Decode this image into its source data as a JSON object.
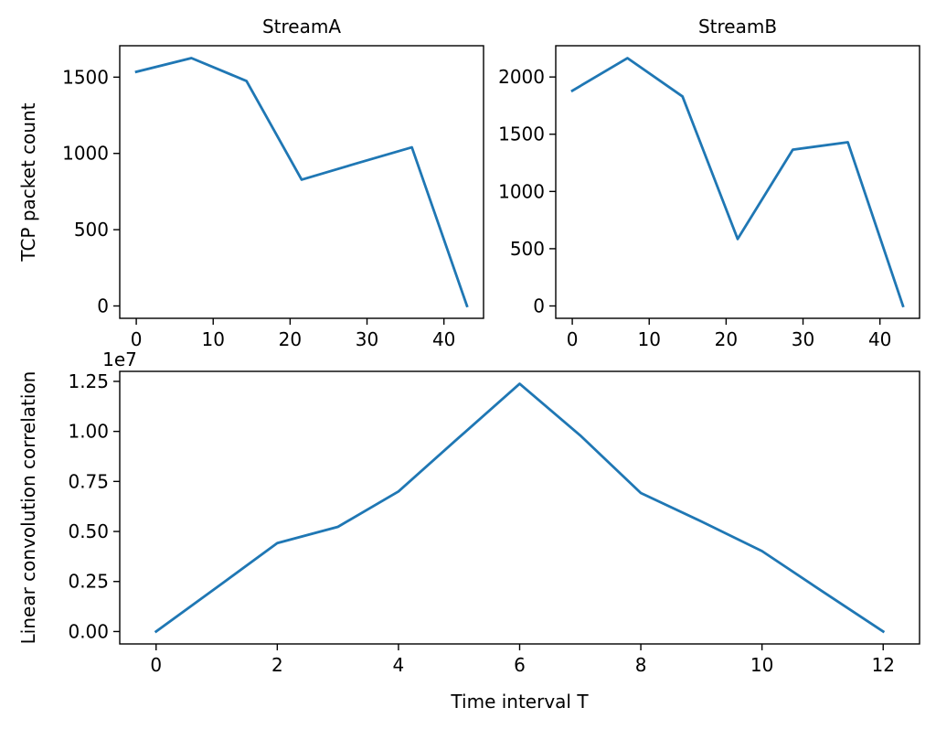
{
  "chart_data": [
    {
      "type": "line",
      "title": "StreamA",
      "xlabel": "",
      "ylabel": "TCP packet count",
      "color": "#1f77b4",
      "x": [
        0,
        7.17,
        14.33,
        21.5,
        28.67,
        35.83,
        43
      ],
      "y": [
        1535,
        1625,
        1475,
        828,
        935,
        1040,
        0
      ],
      "xlim": [
        -2.15,
        45.15
      ],
      "ylim": [
        -81,
        1706
      ],
      "xticks": [
        0,
        10,
        20,
        30,
        40
      ],
      "yticks": [
        0,
        500,
        1000,
        1500
      ],
      "ytick_labels": [
        "0",
        "500",
        "1000",
        "1500"
      ],
      "offset_text": ""
    },
    {
      "type": "line",
      "title": "StreamB",
      "xlabel": "",
      "ylabel": "",
      "color": "#1f77b4",
      "x": [
        0,
        7.17,
        14.33,
        21.5,
        28.67,
        35.83,
        43
      ],
      "y": [
        1880,
        2165,
        1830,
        585,
        1365,
        1430,
        0
      ],
      "xlim": [
        -2.15,
        45.15
      ],
      "ylim": [
        -108,
        2273
      ],
      "xticks": [
        0,
        10,
        20,
        30,
        40
      ],
      "yticks": [
        0,
        500,
        1000,
        1500,
        2000
      ],
      "ytick_labels": [
        "0",
        "500",
        "1000",
        "1500",
        "2000"
      ],
      "offset_text": ""
    },
    {
      "type": "line",
      "title": "",
      "xlabel": "Time interval T",
      "ylabel": "Linear convolution correlation",
      "color": "#1f77b4",
      "x": [
        0,
        1,
        2,
        3,
        4,
        5,
        6,
        7,
        8,
        9,
        10,
        11,
        12
      ],
      "y": [
        0,
        2200000,
        4420000,
        5230000,
        7000000,
        9700000,
        12380000,
        9800000,
        6920000,
        5500000,
        4020000,
        2000000,
        0
      ],
      "xlim": [
        -0.6,
        12.6
      ],
      "ylim": [
        -620000,
        13000000
      ],
      "xticks": [
        0,
        2,
        4,
        6,
        8,
        10,
        12
      ],
      "yticks": [
        0,
        2500000,
        5000000,
        7500000,
        10000000,
        12500000
      ],
      "ytick_labels": [
        "0.00",
        "0.25",
        "0.50",
        "0.75",
        "1.00",
        "1.25"
      ],
      "offset_text": "1e7"
    }
  ]
}
